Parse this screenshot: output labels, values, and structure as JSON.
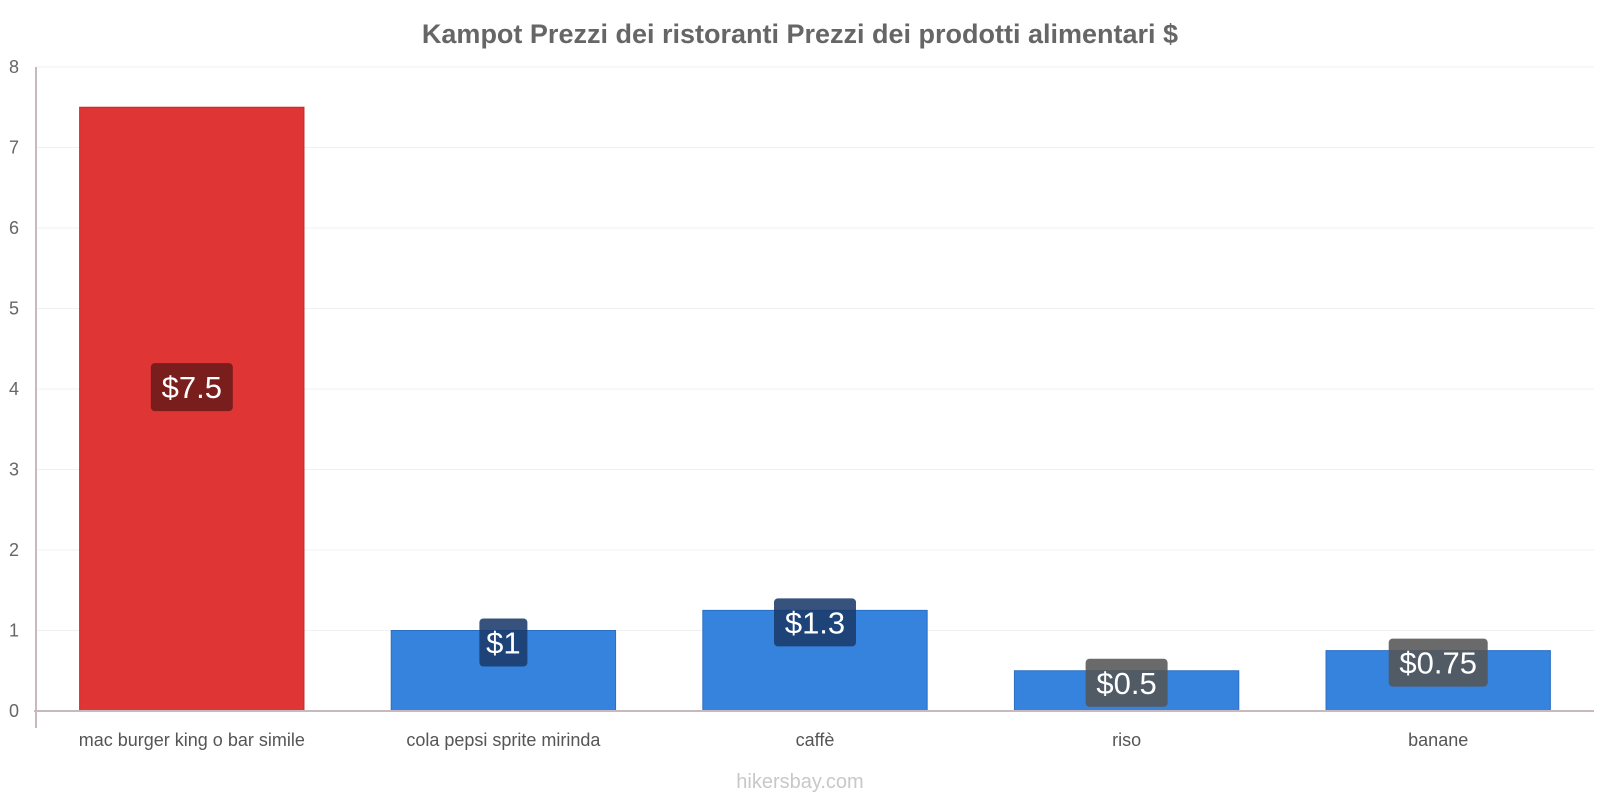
{
  "chart_data": {
    "type": "bar",
    "title": "Kampot Prezzi dei ristoranti Prezzi dei prodotti alimentari $",
    "xlabel": "",
    "ylabel": "",
    "ylim": [
      0,
      8
    ],
    "yticks": [
      0,
      1,
      2,
      3,
      4,
      5,
      6,
      7,
      8
    ],
    "grid": true,
    "categories": [
      "mac burger king o bar simile",
      "cola pepsi sprite mirinda",
      "caffè",
      "riso",
      "banane"
    ],
    "values": [
      7.5,
      1,
      1.25,
      0.5,
      0.75
    ],
    "data_labels": [
      "$7.5",
      "$1",
      "$1.3",
      "$0.5",
      "$0.75"
    ],
    "bar_colors": [
      "#e03535",
      "#3683de",
      "#3683de",
      "#3683de",
      "#3683de"
    ],
    "label_colors": [
      "#6b1a1a",
      "#1a3a6b",
      "#1a3a6b",
      "#555555",
      "#555555"
    ],
    "footer": "hikersbay.com"
  }
}
